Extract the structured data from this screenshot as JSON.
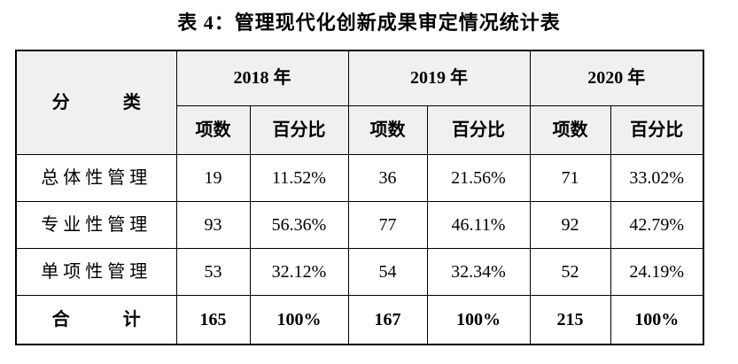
{
  "title": "表 4：管理现代化创新成果审定情况统计表",
  "colors": {
    "header_background": "#f0f0f0",
    "border": "#000000",
    "text": "#000000",
    "page_background": "#ffffff"
  },
  "table": {
    "category_header": "分　　　类",
    "year_headers": [
      "2018 年",
      "2019 年",
      "2020 年"
    ],
    "sub_headers": {
      "count": "项数",
      "percent": "百分比"
    },
    "rows": [
      {
        "category": "总体性管理",
        "values": [
          "19",
          "11.52%",
          "36",
          "21.56%",
          "71",
          "33.02%"
        ]
      },
      {
        "category": "专业性管理",
        "values": [
          "93",
          "56.36%",
          "77",
          "46.11%",
          "92",
          "42.79%"
        ]
      },
      {
        "category": "单项性管理",
        "values": [
          "53",
          "32.12%",
          "54",
          "32.34%",
          "52",
          "24.19%"
        ]
      }
    ],
    "total": {
      "category": "合　　　计",
      "values": [
        "165",
        "100%",
        "167",
        "100%",
        "215",
        "100%"
      ]
    }
  }
}
